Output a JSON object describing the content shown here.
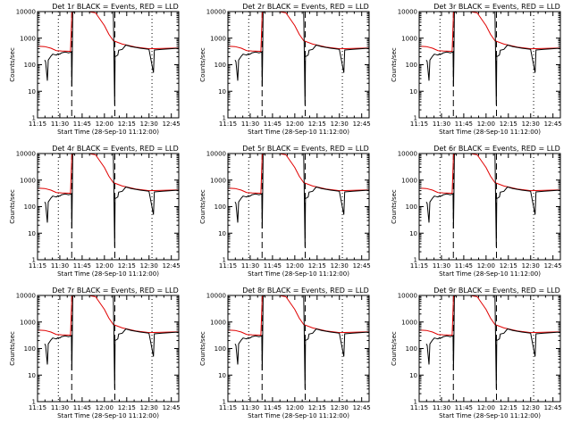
{
  "chart_data": {
    "type": "line",
    "common": {
      "xlabel": "Start Time (28-Sep-10 11:12:00)",
      "ylabel": "Counts/sec",
      "xlim": [
        11.25,
        12.8333
      ],
      "ylim": [
        1,
        10000
      ],
      "y_scale": "log",
      "x_tick_labels": [
        "11:15",
        "11:30",
        "11:45",
        "12:00",
        "12:15",
        "12:30",
        "12:45"
      ],
      "y_tick_labels": [
        "1",
        "10",
        "100",
        "1000",
        "10000"
      ],
      "series_colors": {
        "events": "#000000",
        "lld": "#e00000"
      },
      "dotted_vlines_hours": [
        11.4833,
        12.5333
      ],
      "dashed_vlines_hours": [
        11.6333,
        12.1167
      ]
    },
    "panels": [
      {
        "title": "Det 1r BLACK = Events, RED = LLD"
      },
      {
        "title": "Det 2r BLACK = Events, RED = LLD"
      },
      {
        "title": "Det 3r BLACK = Events, RED = LLD"
      },
      {
        "title": "Det 4r BLACK = Events, RED = LLD"
      },
      {
        "title": "Det 5r BLACK = Events, RED = LLD"
      },
      {
        "title": "Det 6r BLACK = Events, RED = LLD"
      },
      {
        "title": "Det 7r BLACK = Events, RED = LLD"
      },
      {
        "title": "Det 8r BLACK = Events, RED = LLD"
      },
      {
        "title": "Det 9r BLACK = Events, RED = LLD"
      }
    ],
    "series": [
      {
        "key": "lld",
        "points": [
          [
            11.25,
            500
          ],
          [
            11.33,
            480
          ],
          [
            11.4,
            420
          ],
          [
            11.46,
            340
          ],
          [
            11.52,
            330
          ],
          [
            11.62,
            320
          ],
          [
            11.635,
            9000
          ],
          [
            11.66,
            10000
          ],
          [
            11.82,
            10000
          ],
          [
            11.9,
            9000
          ],
          [
            12.0,
            3000
          ],
          [
            12.05,
            1400
          ],
          [
            12.1,
            800
          ],
          [
            12.2,
            600
          ],
          [
            12.35,
            460
          ],
          [
            12.5,
            400
          ],
          [
            12.65,
            410
          ],
          [
            12.8333,
            430
          ]
        ]
      },
      {
        "key": "events",
        "points": [
          [
            11.33,
            150
          ],
          [
            11.34,
            130
          ],
          [
            11.36,
            25
          ],
          [
            11.37,
            150
          ],
          [
            11.4,
            210
          ],
          [
            11.42,
            250
          ],
          [
            11.44,
            240
          ],
          [
            11.46,
            230
          ],
          [
            11.48,
            260
          ],
          [
            11.5,
            250
          ],
          [
            11.52,
            280
          ],
          [
            11.56,
            300
          ],
          [
            11.6,
            280
          ],
          [
            11.63,
            300
          ],
          [
            11.635,
            15
          ],
          [
            11.64,
            300
          ],
          [
            11.645,
            9000
          ],
          [
            11.66,
            10000
          ],
          [
            11.72,
            10000
          ],
          [
            12.1,
            10000
          ],
          [
            12.115,
            3
          ],
          [
            12.12,
            200
          ],
          [
            12.15,
            230
          ],
          [
            12.16,
            350
          ],
          [
            12.2,
            380
          ],
          [
            12.24,
            550
          ],
          [
            12.3,
            480
          ],
          [
            12.4,
            420
          ],
          [
            12.5,
            380
          ],
          [
            12.55,
            50
          ],
          [
            12.56,
            360
          ],
          [
            12.65,
            380
          ],
          [
            12.8333,
            420
          ]
        ]
      }
    ]
  }
}
